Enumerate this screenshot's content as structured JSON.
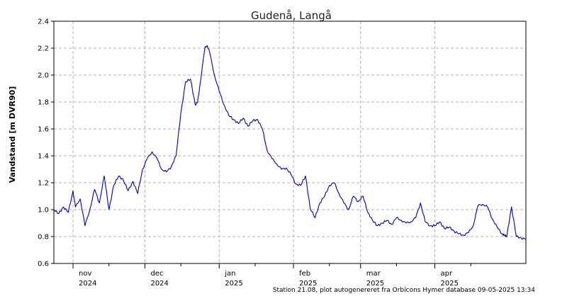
{
  "chart_data": {
    "type": "line",
    "title": "Gudenå, Langå",
    "ylabel": "Vandstand [m DVR90]",
    "xlabel": "",
    "ylim": [
      0.6,
      2.4
    ],
    "y_ticks": [
      "0.6",
      "0.8",
      "1.0",
      "1.2",
      "1.4",
      "1.6",
      "1.8",
      "2.0",
      "2.2",
      "2.4"
    ],
    "xlim": [
      "2024-10-24",
      "2025-05-09"
    ],
    "x_ticks": [
      {
        "month": "nov",
        "year": "2024",
        "date": "2024-11-01"
      },
      {
        "month": "dec",
        "year": "2024",
        "date": "2024-12-01"
      },
      {
        "month": "jan",
        "year": "2025",
        "date": "2025-01-01"
      },
      {
        "month": "feb",
        "year": "2025",
        "date": "2025-02-01"
      },
      {
        "month": "mar",
        "year": "2025",
        "date": "2025-03-01"
      },
      {
        "month": "apr",
        "year": "2025",
        "date": "2025-04-01"
      }
    ],
    "grid": true,
    "legend": "none",
    "series": [
      {
        "color": "#0000c0",
        "x": [
          "2024-10-24",
          "2024-10-26",
          "2024-10-28",
          "2024-10-30",
          "2024-11-01",
          "2024-11-02",
          "2024-11-04",
          "2024-11-06",
          "2024-11-08",
          "2024-11-10",
          "2024-11-12",
          "2024-11-14",
          "2024-11-16",
          "2024-11-18",
          "2024-11-20",
          "2024-11-22",
          "2024-11-24",
          "2024-11-26",
          "2024-11-28",
          "2024-11-30",
          "2024-12-02",
          "2024-12-04",
          "2024-12-06",
          "2024-12-08",
          "2024-12-10",
          "2024-12-12",
          "2024-12-14",
          "2024-12-16",
          "2024-12-18",
          "2024-12-20",
          "2024-12-22",
          "2024-12-23",
          "2024-12-24",
          "2024-12-26",
          "2024-12-27",
          "2024-12-28",
          "2024-12-30",
          "2025-01-01",
          "2025-01-03",
          "2025-01-05",
          "2025-01-07",
          "2025-01-09",
          "2025-01-11",
          "2025-01-13",
          "2025-01-15",
          "2025-01-17",
          "2025-01-19",
          "2025-01-21",
          "2025-01-23",
          "2025-01-25",
          "2025-01-27",
          "2025-01-29",
          "2025-01-31",
          "2025-02-02",
          "2025-02-04",
          "2025-02-06",
          "2025-02-08",
          "2025-02-10",
          "2025-02-12",
          "2025-02-14",
          "2025-02-16",
          "2025-02-18",
          "2025-02-20",
          "2025-02-22",
          "2025-02-24",
          "2025-02-26",
          "2025-02-28",
          "2025-03-02",
          "2025-03-04",
          "2025-03-06",
          "2025-03-08",
          "2025-03-10",
          "2025-03-12",
          "2025-03-14",
          "2025-03-16",
          "2025-03-18",
          "2025-03-20",
          "2025-03-22",
          "2025-03-24",
          "2025-03-26",
          "2025-03-28",
          "2025-03-30",
          "2025-04-01",
          "2025-04-03",
          "2025-04-05",
          "2025-04-07",
          "2025-04-09",
          "2025-04-11",
          "2025-04-13",
          "2025-04-15",
          "2025-04-17",
          "2025-04-19",
          "2025-04-21",
          "2025-04-23",
          "2025-04-25",
          "2025-04-27",
          "2025-04-29",
          "2025-04-30",
          "2025-05-01",
          "2025-05-03",
          "2025-05-05",
          "2025-05-07",
          "2025-05-09"
        ],
        "y": [
          1.0,
          0.97,
          1.02,
          0.98,
          1.14,
          1.02,
          1.08,
          0.88,
          1.0,
          1.15,
          1.05,
          1.25,
          1.0,
          1.18,
          1.25,
          1.22,
          1.14,
          1.21,
          1.12,
          1.3,
          1.38,
          1.43,
          1.38,
          1.3,
          1.28,
          1.32,
          1.4,
          1.72,
          1.95,
          1.97,
          1.78,
          1.8,
          1.93,
          2.2,
          2.22,
          2.17,
          2.0,
          1.88,
          1.78,
          1.7,
          1.67,
          1.64,
          1.68,
          1.62,
          1.66,
          1.67,
          1.6,
          1.44,
          1.38,
          1.34,
          1.3,
          1.31,
          1.26,
          1.19,
          1.18,
          1.25,
          1.01,
          0.94,
          1.05,
          1.1,
          1.18,
          1.2,
          1.12,
          1.05,
          1.0,
          1.1,
          1.06,
          1.1,
          0.98,
          0.92,
          0.88,
          0.9,
          0.92,
          0.89,
          0.94,
          0.92,
          0.9,
          0.91,
          0.94,
          1.05,
          0.91,
          0.88,
          0.88,
          0.91,
          0.86,
          0.87,
          0.84,
          0.82,
          0.81,
          0.83,
          0.88,
          1.03,
          1.04,
          1.02,
          0.93,
          0.87,
          0.82,
          0.81,
          0.8,
          1.02,
          0.8,
          0.79,
          0.78
        ]
      }
    ]
  },
  "footer": "Station 21.08, plot autogenereret fra Orbicons Hymer database 09-05-2025 13:34"
}
